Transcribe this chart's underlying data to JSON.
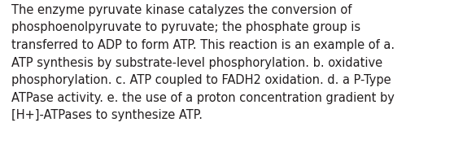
{
  "text": "The enzyme pyruvate kinase catalyzes the conversion of\nphosphoenolpyruvate to pyruvate; the phosphate group is\ntransferred to ADP to form ATP. This reaction is an example of a.\nATP synthesis by substrate-level phosphorylation. b. oxidative\nphosphorylation. c. ATP coupled to FADH2 oxidation. d. a P-Type\nATPase activity. e. the use of a proton concentration gradient by\n[H+]-ATPases to synthesize ATP.",
  "background_color": "#ffffff",
  "text_color": "#231f20",
  "font_size": 10.5,
  "fig_width": 5.58,
  "fig_height": 1.88,
  "dpi": 100
}
